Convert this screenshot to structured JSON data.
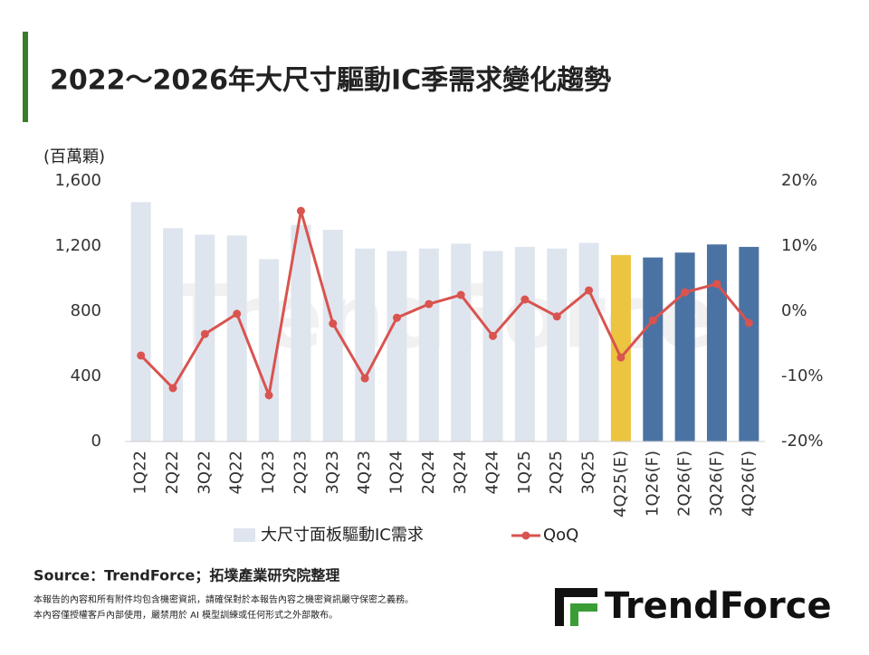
{
  "chart_data": {
    "type": "bar_line",
    "title": "2022～2026年大尺寸驅動IC季需求變化趨勢",
    "y_label": "(百萬顆)",
    "watermark": "TrendForce",
    "categories": [
      "1Q22",
      "2Q22",
      "3Q22",
      "4Q22",
      "1Q23",
      "2Q23",
      "3Q23",
      "4Q23",
      "1Q24",
      "2Q24",
      "3Q24",
      "4Q24",
      "1Q25",
      "2Q25",
      "3Q25",
      "4Q25(E)",
      "1Q26(F)",
      "2Q26(F)",
      "3Q26(F)",
      "4Q26(F)"
    ],
    "series": [
      {
        "name": "大尺寸面板驅動IC需求",
        "type": "bar",
        "color": "#dfe5ee",
        "bar_colors": [
          "#dfe5ee",
          "#dfe5ee",
          "#dfe5ee",
          "#dfe5ee",
          "#dfe5ee",
          "#dfe5ee",
          "#dfe5ee",
          "#dfe5ee",
          "#dfe5ee",
          "#dfe5ee",
          "#dfe5ee",
          "#dfe5ee",
          "#dfe5ee",
          "#dfe5ee",
          "#dfe5ee",
          "#ecc440",
          "#4a73a3",
          "#4a73a3",
          "#4a73a3",
          "#4a73a3"
        ],
        "values": [
          1470,
          1310,
          1270,
          1265,
          1120,
          1330,
          1300,
          1185,
          1170,
          1185,
          1215,
          1170,
          1195,
          1185,
          1220,
          1145,
          1130,
          1160,
          1210,
          1195
        ]
      },
      {
        "name": "QoQ",
        "type": "line",
        "axis": "y2",
        "color": "#d9534f",
        "values": [
          -6.8,
          -11.8,
          -3.5,
          -0.4,
          -12.9,
          15.4,
          -1.9,
          -10.3,
          -1.0,
          1.1,
          2.5,
          -3.8,
          1.8,
          -0.8,
          3.2,
          -7.1,
          -1.4,
          2.9,
          4.2,
          -1.8
        ]
      }
    ],
    "ylim": [
      0,
      1600
    ],
    "yticks": [
      0,
      400,
      800,
      {
        "value": 1200,
        "label": "1,200"
      },
      {
        "value": 1600,
        "label": "1,600"
      }
    ],
    "y2lim": [
      -20,
      20
    ],
    "y2ticks": [
      {
        "value": -20,
        "label": "-20%"
      },
      {
        "value": -10,
        "label": "-10%"
      },
      {
        "value": 0,
        "label": "0%"
      },
      {
        "value": 10,
        "label": "10%"
      },
      {
        "value": 20,
        "label": "20%"
      }
    ]
  },
  "footer": {
    "source": "Source：TrendForce；拓墣產業研究院整理",
    "disclaimer": [
      "本報告的內容和所有附件均包含機密資訊，請確保對於本報告內容之機密資訊嚴守保密之義務。",
      "本內容僅授權客戶內部使用，嚴禁用於 AI 模型訓練或任何形式之外部散布。"
    ],
    "logo": "TrendForce"
  }
}
